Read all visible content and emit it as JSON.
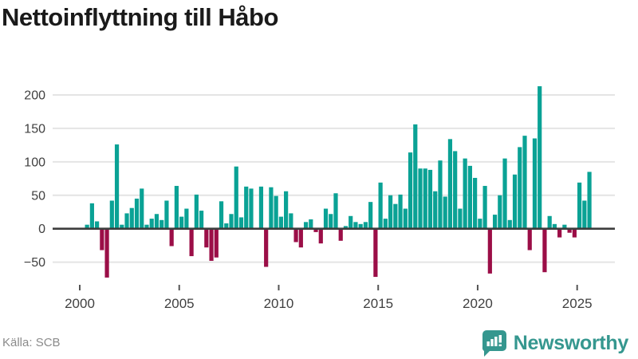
{
  "header": {
    "title": "Nettoinflyttning till Håbo"
  },
  "footer": {
    "source_label": "Källa: SCB",
    "logo_text": "Newsworthy",
    "logo_icon": "bar-chart-speech-bubble-icon"
  },
  "colors": {
    "positive_bar": "#0aa295",
    "negative_bar": "#9b0e47",
    "gridline": "#e4e4e4",
    "zero_line": "#3d3d3d",
    "axis_text": "#404040",
    "title_text": "#1a1a1a",
    "muted_text": "#8b8b8b",
    "logo_teal": "#35978f"
  },
  "chart_data": {
    "type": "bar",
    "title": "Nettoinflyttning till Håbo",
    "xlabel": "",
    "ylabel": "",
    "frequency": "quarterly",
    "start_year": 2000,
    "start_quarter": 1,
    "values": [
      0,
      6,
      38,
      11,
      -32,
      -73,
      42,
      126,
      6,
      23,
      31,
      45,
      60,
      6,
      15,
      22,
      13,
      42,
      -26,
      64,
      18,
      30,
      -41,
      51,
      27,
      -28,
      -48,
      -43,
      41,
      8,
      22,
      93,
      17,
      63,
      60,
      0,
      63,
      -57,
      62,
      49,
      18,
      56,
      23,
      -20,
      -28,
      10,
      14,
      -5,
      -22,
      30,
      22,
      53,
      -18,
      4,
      19,
      10,
      7,
      10,
      40,
      -72,
      69,
      15,
      50,
      37,
      51,
      30,
      114,
      156,
      90,
      90,
      88,
      56,
      102,
      48,
      134,
      116,
      30,
      105,
      94,
      76,
      15,
      64,
      -67,
      21,
      50,
      105,
      13,
      81,
      122,
      139,
      -32,
      135,
      213,
      -65,
      19,
      7,
      -13,
      6,
      -6,
      -13,
      69,
      42,
      85
    ],
    "x_tick_labels": [
      "2000",
      "2005",
      "2010",
      "2015",
      "2020",
      "2025"
    ],
    "y_tick_labels": [
      "−50",
      "0",
      "50",
      "100",
      "150",
      "200"
    ],
    "y_tick_values": [
      -50,
      0,
      50,
      100,
      150,
      200
    ],
    "ylim": [
      -80,
      220
    ],
    "grid": true,
    "legend": "none"
  }
}
